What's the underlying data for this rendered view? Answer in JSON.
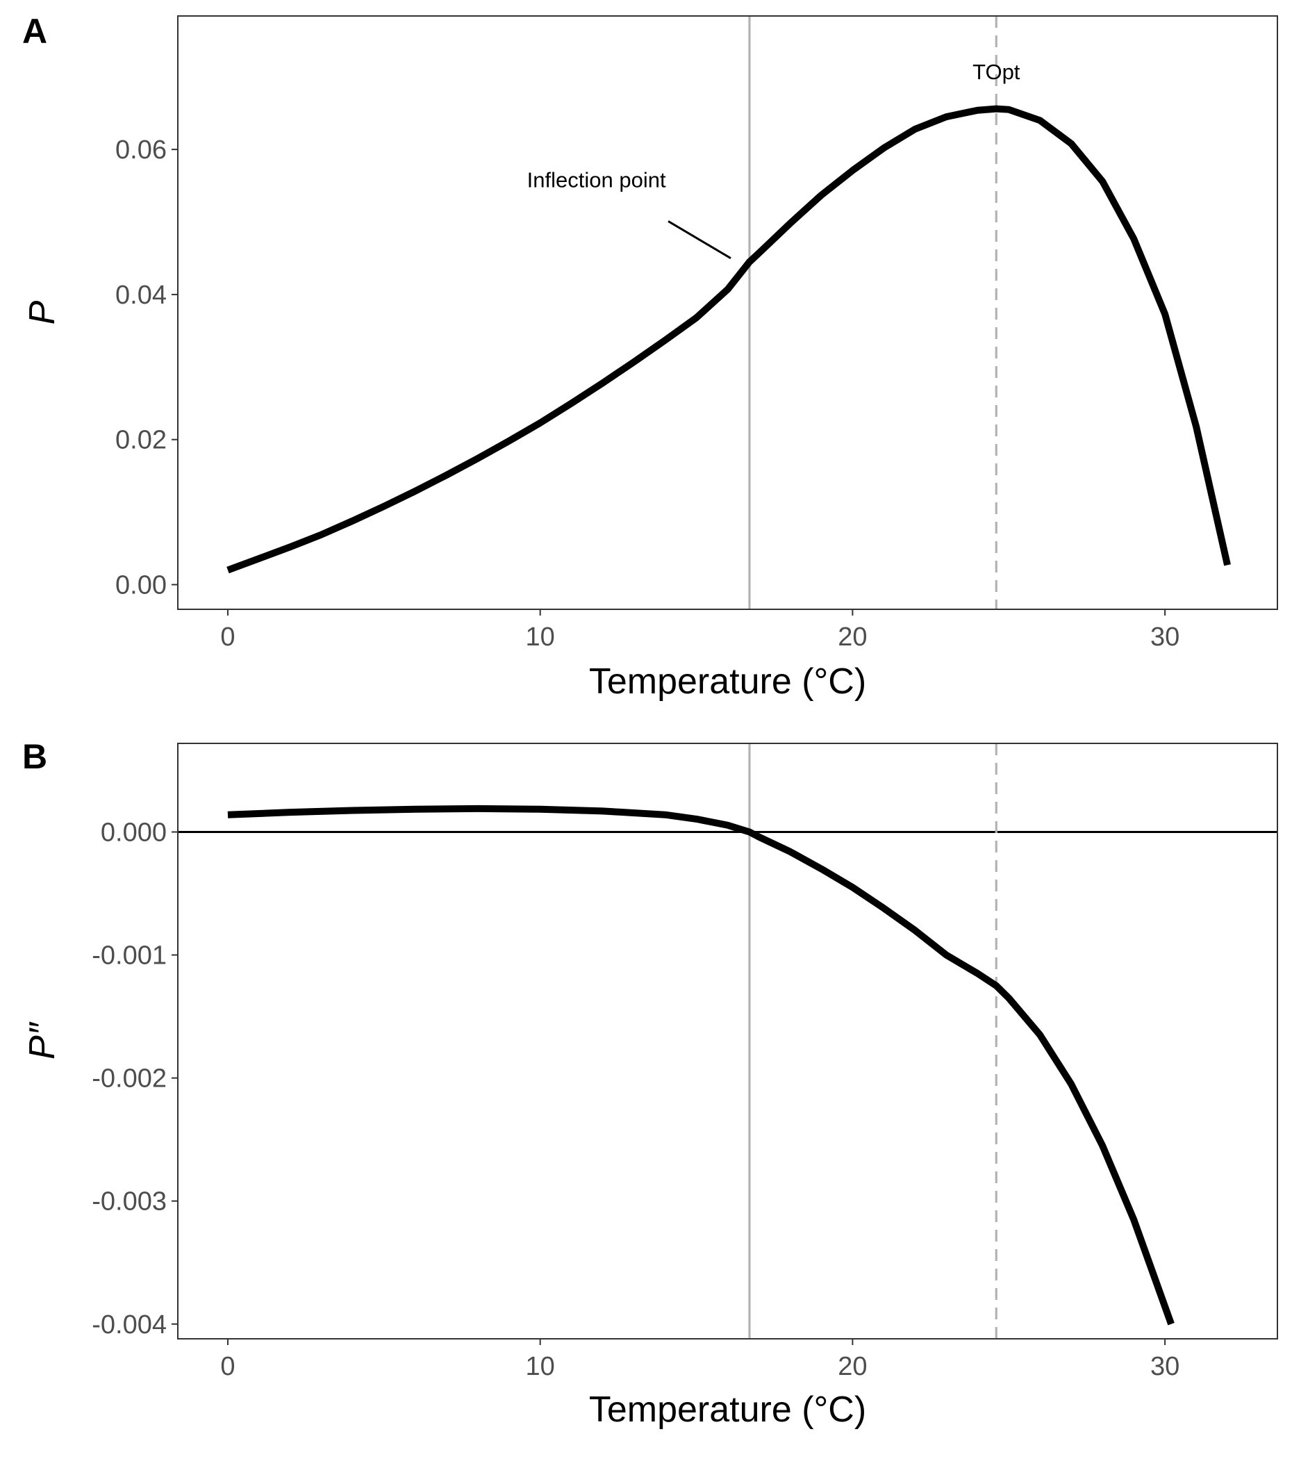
{
  "figure": {
    "panel_a_label": "A",
    "panel_b_label": "B"
  },
  "colors": {
    "curve": "#000000",
    "inflection_line": "#b3b3b3",
    "topt_line": "#b3b3b3",
    "zero_line": "#000000",
    "panel_border": "#333333",
    "tick_label": "#4d4d4d"
  },
  "chart_data": [
    {
      "panel": "A",
      "type": "line",
      "title": "",
      "xlabel": "Temperature (°C)",
      "ylabel": "P",
      "xlim": [
        -1.6,
        33.6
      ],
      "ylim": [
        -0.0034,
        0.0784
      ],
      "x_ticks": [
        0,
        10,
        20,
        30
      ],
      "x_tick_labels": [
        "0",
        "10",
        "20",
        "30"
      ],
      "y_ticks": [
        0.0,
        0.02,
        0.04,
        0.06
      ],
      "y_tick_labels": [
        "0.00",
        "0.02",
        "0.04",
        "0.06"
      ],
      "grid": false,
      "legend": "none",
      "series": [
        {
          "x": [
            0,
            1,
            2,
            3,
            4,
            5,
            6,
            7,
            8,
            9,
            10,
            11,
            12,
            13,
            14,
            15,
            16,
            16.7,
            17,
            18,
            19,
            20,
            21,
            22,
            23,
            24,
            24.6,
            25,
            26,
            27,
            28,
            29,
            30,
            31,
            32
          ],
          "y": [
            0.002,
            0.0036,
            0.0052,
            0.0069,
            0.0088,
            0.0108,
            0.0129,
            0.0151,
            0.0174,
            0.0198,
            0.0223,
            0.025,
            0.0278,
            0.0307,
            0.0337,
            0.0368,
            0.0407,
            0.0445,
            0.0457,
            0.0498,
            0.0537,
            0.0571,
            0.0602,
            0.0628,
            0.0645,
            0.0654,
            0.0656,
            0.0655,
            0.064,
            0.0608,
            0.0556,
            0.0477,
            0.0373,
            0.0218,
            0.0027
          ]
        }
      ],
      "vlines": [
        {
          "x": 16.7,
          "style": "solid",
          "color": "#b3b3b3"
        },
        {
          "x": 24.6,
          "style": "dashed",
          "color": "#b3b3b3"
        }
      ],
      "hlines": [],
      "annotations": [
        {
          "text": "TOpt",
          "x": 24.6,
          "y": 0.0697
        },
        {
          "text": "Inflection point",
          "x": 11.8,
          "y": 0.0548
        },
        {
          "type": "segment",
          "x_from": 14.1,
          "y_from": 0.0501,
          "x_to": 16.1,
          "y_to": 0.045
        }
      ]
    },
    {
      "panel": "B",
      "type": "line",
      "title": "",
      "xlabel": "Temperature (°C)",
      "ylabel": "P″",
      "xlim": [
        -1.6,
        33.6
      ],
      "ylim": [
        -0.00412,
        0.00072
      ],
      "x_ticks": [
        0,
        10,
        20,
        30
      ],
      "x_tick_labels": [
        "0",
        "10",
        "20",
        "30"
      ],
      "y_ticks": [
        0.0,
        -0.001,
        -0.002,
        -0.003,
        -0.004
      ],
      "y_tick_labels": [
        "0.000",
        "-0.001",
        "-0.002",
        "-0.003",
        "-0.004"
      ],
      "grid": false,
      "legend": "none",
      "series": [
        {
          "x": [
            0,
            2,
            4,
            6,
            8,
            10,
            12,
            14,
            15,
            16,
            16.7,
            17,
            18,
            19,
            20,
            21,
            22,
            23,
            24,
            24.6,
            25,
            26,
            27,
            28,
            29,
            30.2
          ],
          "y": [
            0.00014,
            0.00016,
            0.000175,
            0.000185,
            0.00019,
            0.000185,
            0.00017,
            0.00014,
            0.000105,
            5.5e-05,
            0.0,
            -4e-05,
            -0.00016,
            -0.0003,
            -0.00045,
            -0.00062,
            -0.0008,
            -0.001,
            -0.00115,
            -0.00125,
            -0.00135,
            -0.00165,
            -0.00205,
            -0.00255,
            -0.00315,
            -0.004
          ]
        }
      ],
      "vlines": [
        {
          "x": 16.7,
          "style": "solid",
          "color": "#b3b3b3"
        },
        {
          "x": 24.6,
          "style": "dashed",
          "color": "#b3b3b3"
        }
      ],
      "hlines": [
        {
          "y": 0.0,
          "style": "solid",
          "color": "#000000"
        }
      ],
      "annotations": []
    }
  ]
}
